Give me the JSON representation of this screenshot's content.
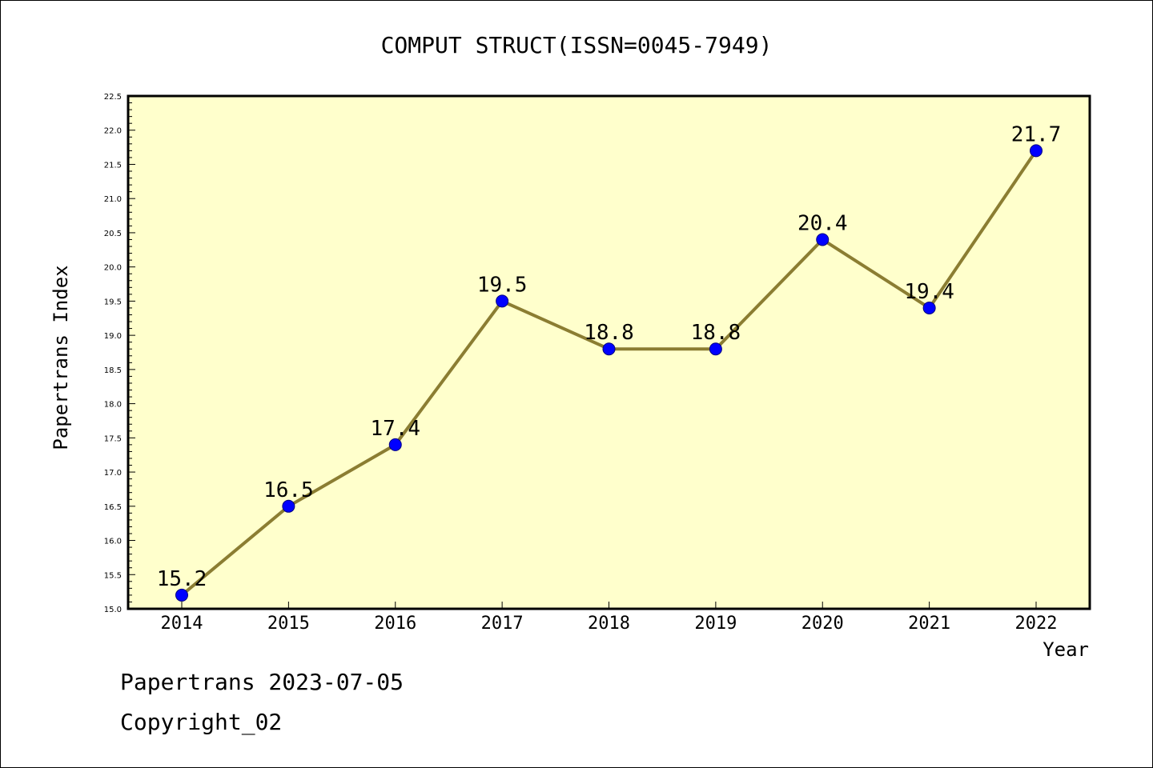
{
  "chart_data": {
    "type": "line",
    "title": "COMPUT STRUCT(ISSN=0045-7949)",
    "xlabel": "Year",
    "ylabel": "Papertrans Index",
    "categories": [
      "2014",
      "2015",
      "2016",
      "2017",
      "2018",
      "2019",
      "2020",
      "2021",
      "2022"
    ],
    "series": [
      {
        "values": [
          15.2,
          16.5,
          17.4,
          19.5,
          18.8,
          18.8,
          20.4,
          19.4,
          21.7
        ]
      }
    ],
    "data_labels": [
      "15.2",
      "16.5",
      "17.4",
      "19.5",
      "18.8",
      "18.8",
      "20.4",
      "19.4",
      "21.7"
    ],
    "yticks": [
      "15.0",
      "15.5",
      "16.0",
      "16.5",
      "17.0",
      "17.5",
      "18.0",
      "18.5",
      "19.0",
      "19.5",
      "20.0",
      "20.5",
      "21.0",
      "21.5",
      "22.0",
      "22.5"
    ],
    "ylim": [
      15.0,
      22.5
    ],
    "grid": false,
    "legend": "none",
    "colors": {
      "plot_background": "#ffffcc",
      "line": "#8b7d32",
      "marker_fill": "#0000ff",
      "marker_edge": "#000080"
    }
  },
  "footer": {
    "line1": "Papertrans 2023-07-05",
    "line2": "Copyright_02"
  }
}
